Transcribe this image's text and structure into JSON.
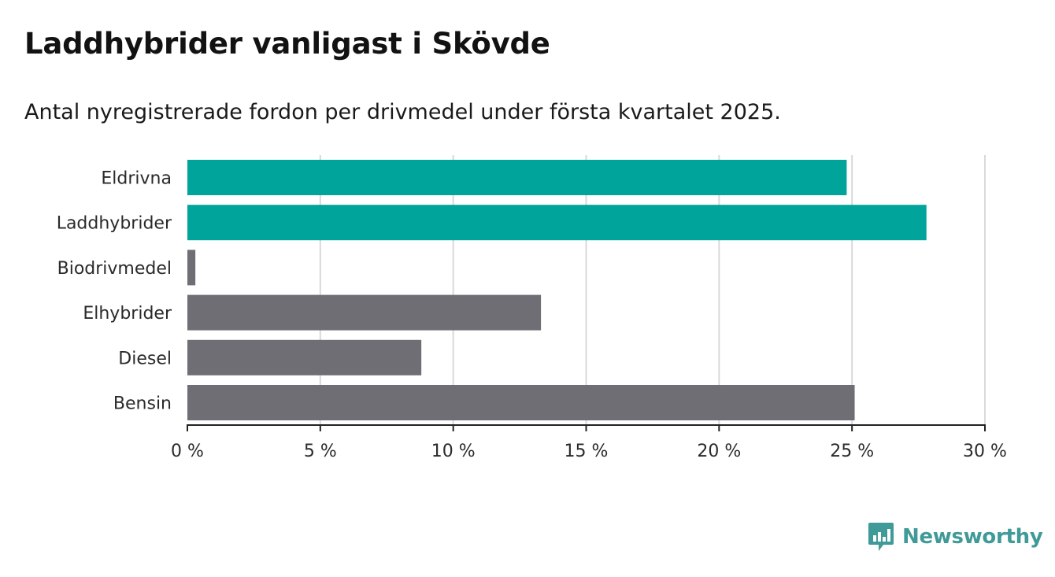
{
  "title": "Laddhybrider vanligast i Skövde",
  "subtitle": "Antal nyregistrerade fordon per drivmedel under första kvartalet 2025.",
  "brand": {
    "name": "Newsworthy",
    "icon": "bar-chart-speech-bubble-icon",
    "color": "#3f9a98"
  },
  "colors": {
    "highlight": "#00a49a",
    "default": "#6e6e74",
    "grid": "#d9d9d9",
    "axis": "#222222",
    "label": "#2a2a2a"
  },
  "chart_data": {
    "type": "bar",
    "orientation": "horizontal",
    "categories": [
      "Eldrivna",
      "Laddhybrider",
      "Biodrivmedel",
      "Elhybrider",
      "Diesel",
      "Bensin"
    ],
    "values": [
      24.8,
      27.8,
      0.3,
      13.3,
      8.8,
      25.1
    ],
    "highlighted": [
      true,
      true,
      false,
      false,
      false,
      false
    ],
    "xlim": [
      0,
      30
    ],
    "xticks": [
      0,
      5,
      10,
      15,
      20,
      25,
      30
    ],
    "xtick_labels": [
      "0 %",
      "5 %",
      "10 %",
      "15 %",
      "20 %",
      "25 %",
      "30 %"
    ],
    "xlabel": "",
    "ylabel": "",
    "grid": "vertical"
  }
}
